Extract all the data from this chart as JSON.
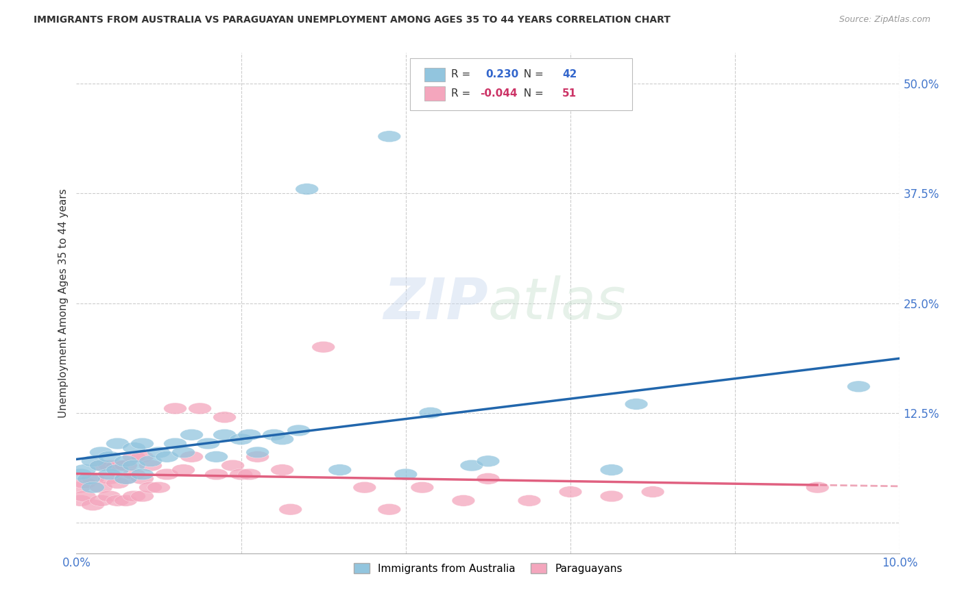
{
  "title": "IMMIGRANTS FROM AUSTRALIA VS PARAGUAYAN UNEMPLOYMENT AMONG AGES 35 TO 44 YEARS CORRELATION CHART",
  "source": "Source: ZipAtlas.com",
  "ylabel": "Unemployment Among Ages 35 to 44 years",
  "xlim": [
    0.0,
    0.1
  ],
  "ylim": [
    -0.035,
    0.535
  ],
  "yticks": [
    0.0,
    0.125,
    0.25,
    0.375,
    0.5
  ],
  "ytick_labels": [
    "",
    "12.5%",
    "25.0%",
    "37.5%",
    "50.0%"
  ],
  "xticks": [
    0.0,
    0.02,
    0.04,
    0.06,
    0.08,
    0.1
  ],
  "xtick_labels": [
    "0.0%",
    "",
    "",
    "",
    "",
    "10.0%"
  ],
  "blue_color": "#92c5de",
  "pink_color": "#f4a6bd",
  "blue_line_color": "#2166ac",
  "pink_line_color": "#e06080",
  "watermark_zip": "ZIP",
  "watermark_atlas": "atlas",
  "blue_R": 0.23,
  "blue_N": 42,
  "pink_R": -0.044,
  "pink_N": 51,
  "blue_x": [
    0.0005,
    0.001,
    0.0015,
    0.002,
    0.002,
    0.003,
    0.003,
    0.004,
    0.004,
    0.005,
    0.005,
    0.006,
    0.006,
    0.007,
    0.007,
    0.008,
    0.008,
    0.009,
    0.01,
    0.011,
    0.012,
    0.013,
    0.014,
    0.016,
    0.017,
    0.018,
    0.02,
    0.021,
    0.022,
    0.024,
    0.025,
    0.027,
    0.028,
    0.032,
    0.038,
    0.04,
    0.043,
    0.048,
    0.05,
    0.065,
    0.068,
    0.095
  ],
  "blue_y": [
    0.055,
    0.06,
    0.05,
    0.07,
    0.04,
    0.065,
    0.08,
    0.055,
    0.075,
    0.06,
    0.09,
    0.05,
    0.07,
    0.065,
    0.085,
    0.055,
    0.09,
    0.07,
    0.08,
    0.075,
    0.09,
    0.08,
    0.1,
    0.09,
    0.075,
    0.1,
    0.095,
    0.1,
    0.08,
    0.1,
    0.095,
    0.105,
    0.38,
    0.06,
    0.44,
    0.055,
    0.125,
    0.065,
    0.07,
    0.06,
    0.135,
    0.155
  ],
  "pink_x": [
    0.0003,
    0.0005,
    0.001,
    0.001,
    0.002,
    0.002,
    0.003,
    0.003,
    0.003,
    0.004,
    0.004,
    0.004,
    0.005,
    0.005,
    0.005,
    0.006,
    0.006,
    0.006,
    0.007,
    0.007,
    0.007,
    0.008,
    0.008,
    0.008,
    0.009,
    0.009,
    0.01,
    0.011,
    0.012,
    0.013,
    0.014,
    0.015,
    0.017,
    0.018,
    0.019,
    0.02,
    0.021,
    0.022,
    0.025,
    0.026,
    0.03,
    0.035,
    0.038,
    0.042,
    0.047,
    0.05,
    0.055,
    0.06,
    0.065,
    0.07,
    0.09
  ],
  "pink_y": [
    0.04,
    0.025,
    0.045,
    0.03,
    0.02,
    0.05,
    0.025,
    0.04,
    0.065,
    0.03,
    0.05,
    0.065,
    0.025,
    0.045,
    0.065,
    0.025,
    0.05,
    0.065,
    0.03,
    0.055,
    0.075,
    0.03,
    0.05,
    0.075,
    0.04,
    0.065,
    0.04,
    0.055,
    0.13,
    0.06,
    0.075,
    0.13,
    0.055,
    0.12,
    0.065,
    0.055,
    0.055,
    0.075,
    0.06,
    0.015,
    0.2,
    0.04,
    0.015,
    0.04,
    0.025,
    0.05,
    0.025,
    0.035,
    0.03,
    0.035,
    0.04
  ],
  "grid_color": "#cccccc",
  "tick_color": "#4477cc",
  "title_color": "#333333",
  "source_color": "#999999"
}
